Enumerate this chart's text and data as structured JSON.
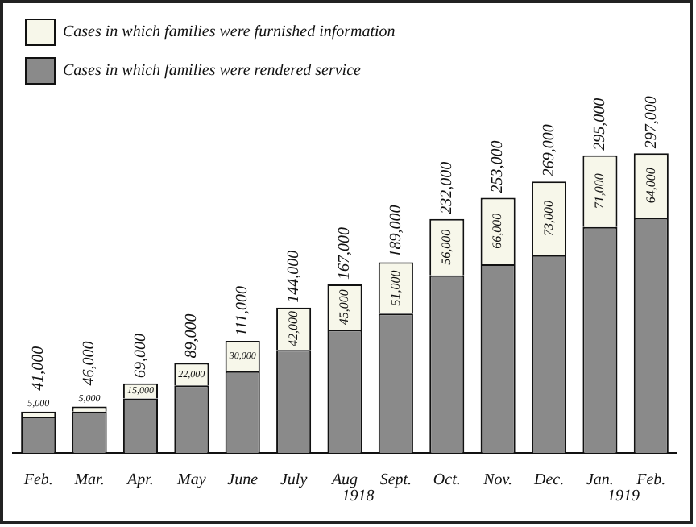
{
  "chart_data": {
    "type": "bar",
    "stacked": true,
    "categories": [
      "Feb.",
      "Mar.",
      "Apr.",
      "May",
      "June",
      "July",
      "Aug",
      "Sept.",
      "Oct.",
      "Nov.",
      "Dec.",
      "Jan.",
      "Feb."
    ],
    "series": [
      {
        "name": "Cases in which families were rendered service",
        "color": "#8a8a8a",
        "values": [
          36000,
          41000,
          54000,
          67000,
          81000,
          102000,
          122000,
          138000,
          176000,
          187000,
          196000,
          224000,
          233000
        ]
      },
      {
        "name": "Cases in which families were furnished information",
        "color": "#f7f7ea",
        "values": [
          5000,
          5000,
          15000,
          22000,
          30000,
          42000,
          45000,
          51000,
          56000,
          66000,
          73000,
          71000,
          64000
        ],
        "value_labels": [
          "5,000",
          "5,000",
          "15,000",
          "22,000",
          "30,000",
          "42,000",
          "45,000",
          "51,000",
          "56,000",
          "66,000",
          "73,000",
          "71,000",
          "64,000"
        ]
      }
    ],
    "totals": [
      "41,000",
      "46,000",
      "69,000",
      "89,000",
      "111,000",
      "144,000",
      "167,000",
      "189,000",
      "232,000",
      "253,000",
      "269,000",
      "295,000",
      "297,000"
    ],
    "annotations": [
      "1918",
      "1919"
    ],
    "legend": "top left",
    "grid": false,
    "tick_labels": "x"
  }
}
